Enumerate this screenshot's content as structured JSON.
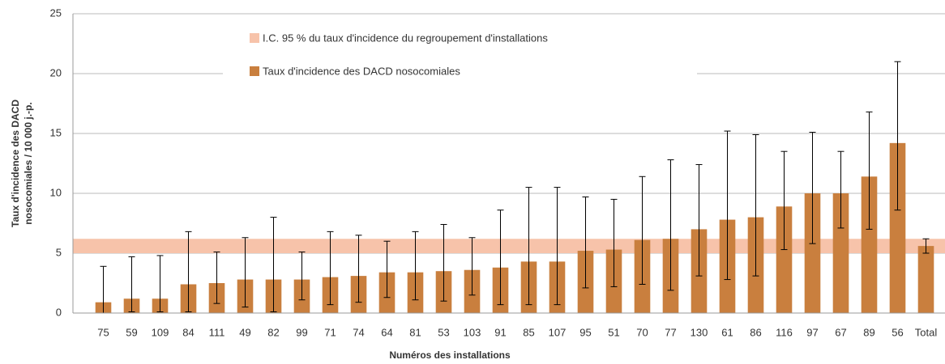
{
  "chart_data": {
    "type": "bar",
    "categories": [
      "75",
      "59",
      "109",
      "84",
      "111",
      "49",
      "82",
      "99",
      "71",
      "74",
      "64",
      "81",
      "53",
      "103",
      "91",
      "85",
      "107",
      "95",
      "51",
      "70",
      "77",
      "130",
      "61",
      "86",
      "116",
      "97",
      "67",
      "89",
      "56",
      "Total"
    ],
    "series": [
      {
        "name": "Taux d'incidence des DACD nosocomiales",
        "color": "#c97f3e",
        "values": [
          0.9,
          1.2,
          1.2,
          2.4,
          2.5,
          2.8,
          2.8,
          2.8,
          3.0,
          3.1,
          3.4,
          3.4,
          3.5,
          3.6,
          3.8,
          4.3,
          4.3,
          5.2,
          5.3,
          6.1,
          6.2,
          7.0,
          7.8,
          8.0,
          8.9,
          10.0,
          10.0,
          11.4,
          14.2,
          5.6
        ],
        "ci_low": [
          0.0,
          0.1,
          0.1,
          0.1,
          0.8,
          0.5,
          0.1,
          1.1,
          0.7,
          0.9,
          1.3,
          1.1,
          1.0,
          1.5,
          0.7,
          0.7,
          0.7,
          2.1,
          2.2,
          2.4,
          1.9,
          3.1,
          2.8,
          3.1,
          5.3,
          5.8,
          7.1,
          7.0,
          8.6,
          5.0
        ],
        "ci_high": [
          3.9,
          4.7,
          4.8,
          6.8,
          5.1,
          6.3,
          8.0,
          5.1,
          6.8,
          6.5,
          6.0,
          6.8,
          7.4,
          6.3,
          8.6,
          10.5,
          10.5,
          9.7,
          9.5,
          11.4,
          12.8,
          12.4,
          15.2,
          14.9,
          13.5,
          15.1,
          13.5,
          16.8,
          21.0,
          6.2
        ]
      }
    ],
    "band": {
      "name": "I.C. 95 % du taux d'incidence du regroupement d'installations",
      "color": "#f7c3aa",
      "low": 5.0,
      "high": 6.2
    },
    "ylabel": [
      "Taux d'incidence des DACD",
      "nosocomiales / 10 000 j.-p."
    ],
    "xlabel": "Numéros des installations",
    "ylim": [
      0,
      25
    ],
    "yticks": [
      0,
      5,
      10,
      15,
      20,
      25
    ],
    "grid": true
  }
}
